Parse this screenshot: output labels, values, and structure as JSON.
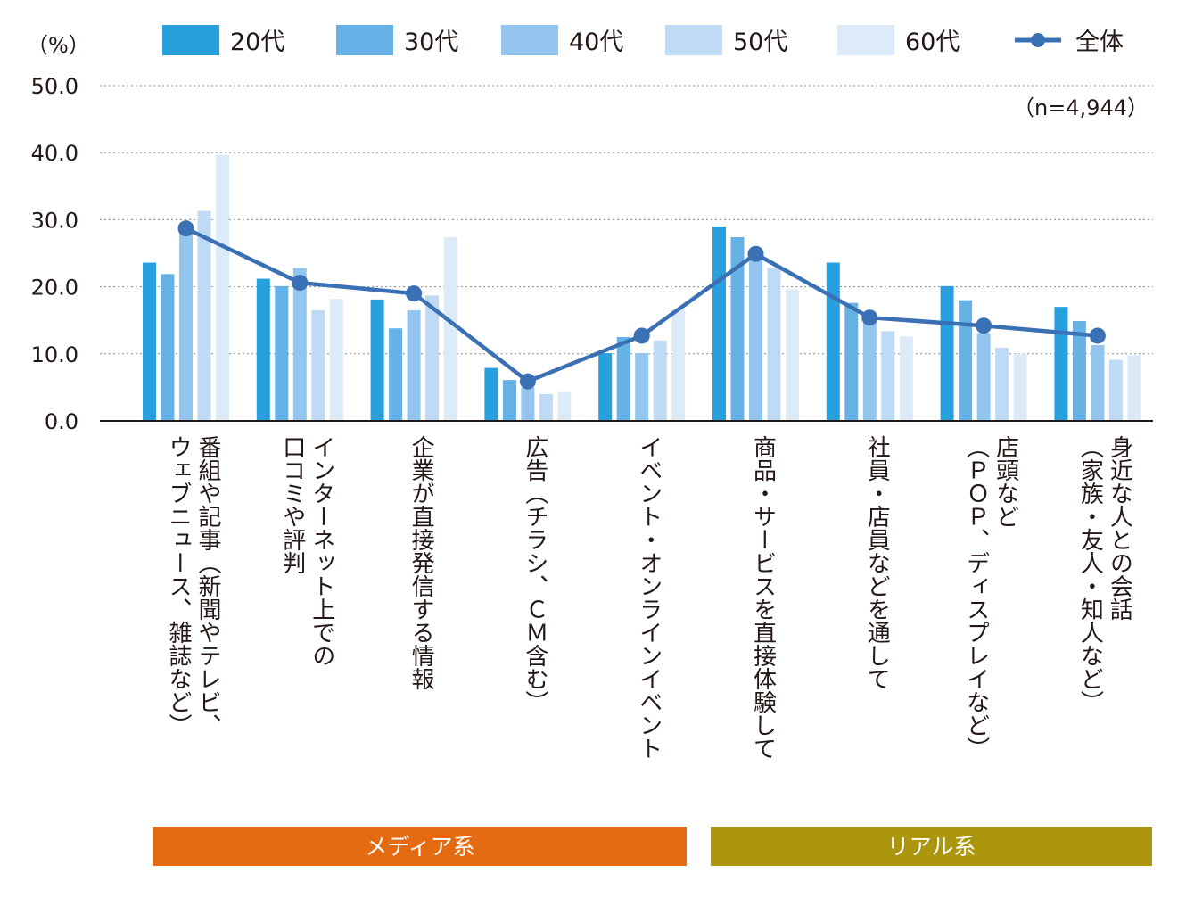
{
  "chart_data": {
    "type": "bar",
    "unit_label": "（%）",
    "sample_note": "（n=4,944）",
    "ylim": [
      0,
      50
    ],
    "yticks": [
      "0.0",
      "10.0",
      "20.0",
      "30.0",
      "40.0",
      "50.0"
    ],
    "grid": true,
    "legend_position": "top",
    "categories": [
      "番組や記事（新聞やテレビ、ウェブニュース、雑誌など）",
      "インターネット上での口コミや評判",
      "企業が直接発信する情報",
      "広告（チラシ、ＣＭ含む）",
      "イベント・オンラインイベント",
      "商品・サービスを直接体験して",
      "社員・店員などを通して",
      "店頭など（ＰＯＰ、ディスプレイなど）",
      "身近な人との会話（家族・友人・知人など）"
    ],
    "category_lines": [
      [
        "番組や記事（新聞やテレビ、",
        "ウェブニュース、雑誌など）"
      ],
      [
        "インターネット上での",
        "口コミや評判"
      ],
      [
        "企業が直接発信する情報"
      ],
      [
        "広告（チラシ、ＣＭ含む）"
      ],
      [
        "イベント・オンラインイベント"
      ],
      [
        "商品・サービスを直接体験して"
      ],
      [
        "社員・店員などを通して"
      ],
      [
        "店頭など",
        "（ＰＯＰ、ディスプレイなど）"
      ],
      [
        "身近な人との会話",
        "（家族・友人・知人など）"
      ]
    ],
    "series": [
      {
        "name": "20代",
        "type": "bar",
        "color": "#29a0de",
        "values": [
          23.6,
          21.2,
          18.1,
          7.9,
          10.1,
          29.0,
          23.6,
          20.1,
          17.0
        ]
      },
      {
        "name": "30代",
        "type": "bar",
        "color": "#66b1e6",
        "values": [
          21.9,
          20.1,
          13.8,
          6.1,
          12.5,
          27.4,
          17.6,
          18.0,
          14.9
        ]
      },
      {
        "name": "40代",
        "type": "bar",
        "color": "#93c5ee",
        "values": [
          28.3,
          22.8,
          16.5,
          5.0,
          10.1,
          24.0,
          15.2,
          13.1,
          11.3
        ]
      },
      {
        "name": "50代",
        "type": "bar",
        "color": "#bfdaf5",
        "values": [
          31.3,
          16.5,
          18.7,
          4.0,
          12.0,
          22.8,
          13.4,
          10.9,
          9.1
        ]
      },
      {
        "name": "60代",
        "type": "bar",
        "color": "#ddebf8",
        "values": [
          39.7,
          18.2,
          27.4,
          4.3,
          16.6,
          19.6,
          12.6,
          10.0,
          9.8
        ]
      },
      {
        "name": "全体",
        "type": "line",
        "color": "#3a70b4",
        "values": [
          28.7,
          20.6,
          19.0,
          5.9,
          12.7,
          24.9,
          15.4,
          14.2,
          12.7
        ]
      }
    ],
    "groups": [
      {
        "label": "メディア系",
        "color": "#e46b12",
        "from": 0,
        "to": 4
      },
      {
        "label": "リアル系",
        "color": "#ab960e",
        "from": 5,
        "to": 8
      }
    ]
  }
}
